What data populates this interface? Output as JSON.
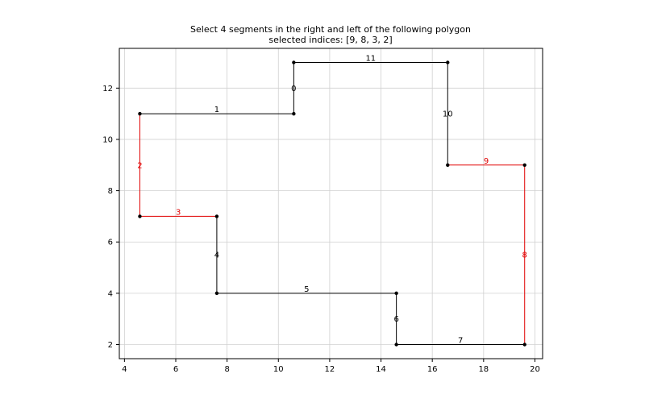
{
  "chart_data": {
    "type": "line",
    "title": "Select 4 segments in the right and left of the following polygon",
    "subtitle": "selected indices: [9, 8, 3, 2]",
    "xlabel": "",
    "ylabel": "",
    "xlim": [
      3.8,
      20.3
    ],
    "ylim": [
      1.45,
      13.55
    ],
    "xticks": [
      4,
      6,
      8,
      10,
      12,
      14,
      16,
      18,
      20
    ],
    "yticks": [
      2,
      4,
      6,
      8,
      10,
      12
    ],
    "grid": true,
    "legend": "none",
    "colors": {
      "default_segment": "#000000",
      "selected_segment": "#e00000",
      "vertex": "#000000",
      "grid": "#d0d0d0"
    },
    "selected_indices": [
      9,
      8,
      3,
      2
    ],
    "segments": [
      {
        "index": 0,
        "label": "0",
        "from": [
          10.6,
          11
        ],
        "to": [
          10.6,
          13
        ]
      },
      {
        "index": 1,
        "label": "1",
        "from": [
          4.6,
          11
        ],
        "to": [
          10.6,
          11
        ]
      },
      {
        "index": 2,
        "label": "2",
        "from": [
          4.6,
          7
        ],
        "to": [
          4.6,
          11
        ]
      },
      {
        "index": 3,
        "label": "3",
        "from": [
          4.6,
          7
        ],
        "to": [
          7.6,
          7
        ]
      },
      {
        "index": 4,
        "label": "4",
        "from": [
          7.6,
          4
        ],
        "to": [
          7.6,
          7
        ]
      },
      {
        "index": 5,
        "label": "5",
        "from": [
          7.6,
          4
        ],
        "to": [
          14.6,
          4
        ]
      },
      {
        "index": 6,
        "label": "6",
        "from": [
          14.6,
          2
        ],
        "to": [
          14.6,
          4
        ]
      },
      {
        "index": 7,
        "label": "7",
        "from": [
          14.6,
          2
        ],
        "to": [
          19.6,
          2
        ]
      },
      {
        "index": 8,
        "label": "8",
        "from": [
          19.6,
          2
        ],
        "to": [
          19.6,
          9
        ]
      },
      {
        "index": 9,
        "label": "9",
        "from": [
          16.6,
          9
        ],
        "to": [
          19.6,
          9
        ]
      },
      {
        "index": 10,
        "label": "10",
        "from": [
          16.6,
          9
        ],
        "to": [
          16.6,
          13
        ]
      },
      {
        "index": 11,
        "label": "11",
        "from": [
          10.6,
          13
        ],
        "to": [
          16.6,
          13
        ]
      }
    ],
    "vertices": [
      [
        10.6,
        13
      ],
      [
        16.6,
        13
      ],
      [
        16.6,
        9
      ],
      [
        19.6,
        9
      ],
      [
        19.6,
        2
      ],
      [
        14.6,
        2
      ],
      [
        14.6,
        4
      ],
      [
        7.6,
        4
      ],
      [
        7.6,
        7
      ],
      [
        4.6,
        7
      ],
      [
        4.6,
        11
      ],
      [
        10.6,
        11
      ]
    ]
  }
}
